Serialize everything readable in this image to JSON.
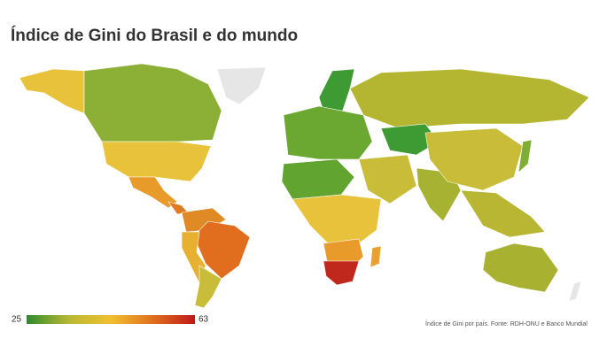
{
  "title": "Índice de Gini do Brasil e do mundo",
  "legend": {
    "min": 25,
    "max": 63,
    "colors": [
      "#2e8b2e",
      "#b8b832",
      "#f0c030",
      "#e07020",
      "#c01818"
    ]
  },
  "source": "Índice de Gini por país. Fonte: RDH-ONU e Banco Mundial"
}
